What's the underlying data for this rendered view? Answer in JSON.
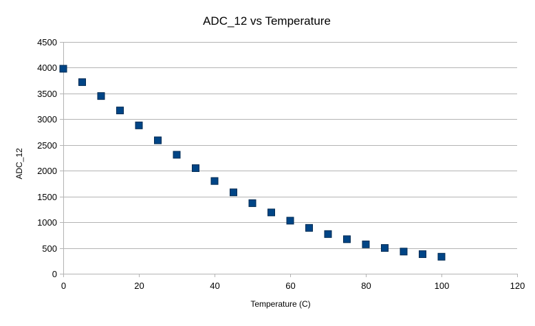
{
  "chart_data": {
    "type": "scatter",
    "title": "ADC_12 vs Temperature",
    "xlabel": "Temperature (C)",
    "ylabel": "ADC_12",
    "xlim": [
      0,
      120
    ],
    "ylim": [
      0,
      4500
    ],
    "xticks": [
      0,
      20,
      40,
      60,
      80,
      100,
      120
    ],
    "yticks": [
      0,
      500,
      1000,
      1500,
      2000,
      2500,
      3000,
      3500,
      4000,
      4500
    ],
    "grid": "horizontal",
    "legend": "none",
    "marker": "square",
    "colors": {
      "marker_fill": "#004586",
      "marker_edge": "#002a52",
      "grid": "#b3b3b3"
    },
    "series": [
      {
        "x": [
          0,
          5,
          10,
          15,
          20,
          25,
          30,
          35,
          40,
          45,
          50,
          55,
          60,
          65,
          70,
          75,
          80,
          85,
          90,
          95,
          100
        ],
        "y": [
          3980,
          3720,
          3450,
          3170,
          2880,
          2590,
          2310,
          2050,
          1800,
          1580,
          1370,
          1190,
          1030,
          890,
          770,
          670,
          570,
          500,
          430,
          380,
          330
        ]
      }
    ]
  }
}
